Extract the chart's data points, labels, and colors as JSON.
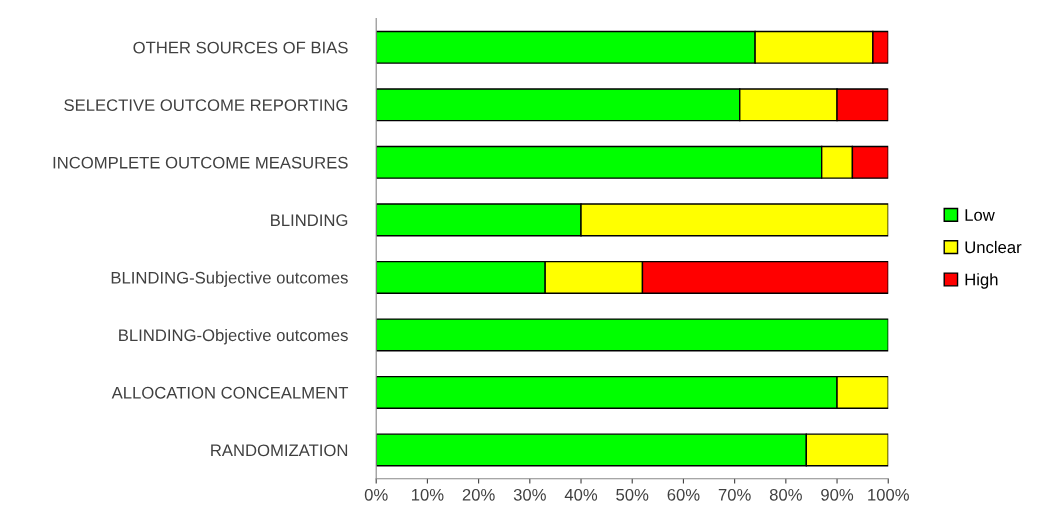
{
  "chart_data": {
    "type": "bar",
    "orientation": "horizontal",
    "stacked": true,
    "categories": [
      "OTHER SOURCES OF BIAS",
      "SELECTIVE OUTCOME REPORTING",
      "INCOMPLETE OUTCOME MEASURES",
      "BLINDING",
      "BLINDING-Subjective outcomes",
      "BLINDING-Objective outcomes",
      "ALLOCATION CONCEALMENT",
      "RANDOMIZATION"
    ],
    "series": [
      {
        "name": "Low",
        "color": "#00ff00",
        "values": [
          74,
          71,
          87,
          40,
          33,
          100,
          90,
          84
        ]
      },
      {
        "name": "Unclear",
        "color": "#ffff00",
        "values": [
          23,
          19,
          6,
          60,
          19,
          null,
          10,
          16
        ]
      },
      {
        "name": "High",
        "color": "#ff0000",
        "values": [
          3,
          10,
          7,
          null,
          48,
          null,
          null,
          null
        ]
      }
    ],
    "xlim": [
      0,
      100
    ],
    "xticks": [
      {
        "value": 0,
        "label": "0%"
      },
      {
        "value": 10,
        "label": "10%"
      },
      {
        "value": 20,
        "label": "20%"
      },
      {
        "value": 30,
        "label": "30%"
      },
      {
        "value": 40,
        "label": "40%"
      },
      {
        "value": 50,
        "label": "50%"
      },
      {
        "value": 60,
        "label": "60%"
      },
      {
        "value": 70,
        "label": "70%"
      },
      {
        "value": 80,
        "label": "80%"
      },
      {
        "value": 90,
        "label": "90%"
      },
      {
        "value": 100,
        "label": "100%"
      }
    ],
    "grid": false,
    "legend": "right"
  }
}
